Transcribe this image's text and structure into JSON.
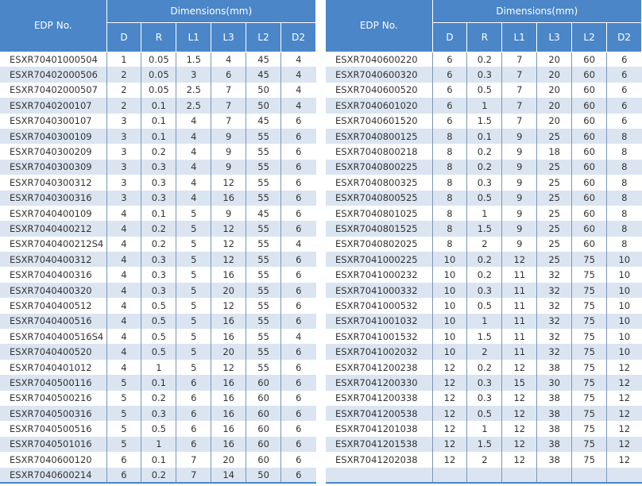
{
  "header": {
    "edp": "EDP No.",
    "group": "Dimensions(mm)",
    "cols": [
      "D",
      "R",
      "L1",
      "L3",
      "L2",
      "D2"
    ]
  },
  "colors": {
    "header": "#4a86c8",
    "band": "#dbe5f1"
  },
  "tables": [
    [
      [
        "ESXR70401000504",
        "1",
        "0.05",
        "1.5",
        "4",
        "45",
        "4"
      ],
      [
        "ESXR70402000506",
        "2",
        "0.05",
        "3",
        "6",
        "45",
        "4"
      ],
      [
        "ESXR70402000507",
        "2",
        "0.05",
        "2.5",
        "7",
        "50",
        "4"
      ],
      [
        "ESXR7040200107",
        "2",
        "0.1",
        "2.5",
        "7",
        "50",
        "4"
      ],
      [
        "ESXR7040300107",
        "3",
        "0.1",
        "4",
        "7",
        "45",
        "6"
      ],
      [
        "ESXR7040300109",
        "3",
        "0.1",
        "4",
        "9",
        "55",
        "6"
      ],
      [
        "ESXR7040300209",
        "3",
        "0.2",
        "4",
        "9",
        "55",
        "6"
      ],
      [
        "ESXR7040300309",
        "3",
        "0.3",
        "4",
        "9",
        "55",
        "6"
      ],
      [
        "ESXR7040300312",
        "3",
        "0.3",
        "4",
        "12",
        "55",
        "6"
      ],
      [
        "ESXR7040300316",
        "3",
        "0.3",
        "4",
        "16",
        "55",
        "6"
      ],
      [
        "ESXR7040400109",
        "4",
        "0.1",
        "5",
        "9",
        "45",
        "6"
      ],
      [
        "ESXR7040400212",
        "4",
        "0.2",
        "5",
        "12",
        "55",
        "6"
      ],
      [
        "ESXR7040400212S4",
        "4",
        "0.2",
        "5",
        "12",
        "55",
        "4"
      ],
      [
        "ESXR7040400312",
        "4",
        "0.3",
        "5",
        "12",
        "55",
        "6"
      ],
      [
        "ESXR7040400316",
        "4",
        "0.3",
        "5",
        "16",
        "55",
        "6"
      ],
      [
        "ESXR7040400320",
        "4",
        "0.3",
        "5",
        "20",
        "55",
        "6"
      ],
      [
        "ESXR7040400512",
        "4",
        "0.5",
        "5",
        "12",
        "55",
        "6"
      ],
      [
        "ESXR7040400516",
        "4",
        "0.5",
        "5",
        "16",
        "55",
        "6"
      ],
      [
        "ESXR7040400516S4",
        "4",
        "0.5",
        "5",
        "16",
        "55",
        "4"
      ],
      [
        "ESXR7040400520",
        "4",
        "0.5",
        "5",
        "20",
        "55",
        "6"
      ],
      [
        "ESXR7040401012",
        "4",
        "1",
        "5",
        "12",
        "55",
        "6"
      ],
      [
        "ESXR7040500116",
        "5",
        "0.1",
        "6",
        "16",
        "60",
        "6"
      ],
      [
        "ESXR7040500216",
        "5",
        "0.2",
        "6",
        "16",
        "60",
        "6"
      ],
      [
        "ESXR7040500316",
        "5",
        "0.3",
        "6",
        "16",
        "60",
        "6"
      ],
      [
        "ESXR7040500516",
        "5",
        "0.5",
        "6",
        "16",
        "60",
        "6"
      ],
      [
        "ESXR7040501016",
        "5",
        "1",
        "6",
        "16",
        "60",
        "6"
      ],
      [
        "ESXR7040600120",
        "6",
        "0.1",
        "7",
        "20",
        "60",
        "6"
      ],
      [
        "ESXR7040600214",
        "6",
        "0.2",
        "7",
        "14",
        "50",
        "6"
      ]
    ],
    [
      [
        "ESXR7040600220",
        "6",
        "0.2",
        "7",
        "20",
        "60",
        "6"
      ],
      [
        "ESXR7040600320",
        "6",
        "0.3",
        "7",
        "20",
        "60",
        "6"
      ],
      [
        "ESXR7040600520",
        "6",
        "0.5",
        "7",
        "20",
        "60",
        "6"
      ],
      [
        "ESXR7040601020",
        "6",
        "1",
        "7",
        "20",
        "60",
        "6"
      ],
      [
        "ESXR7040601520",
        "6",
        "1.5",
        "7",
        "20",
        "60",
        "6"
      ],
      [
        "ESXR7040800125",
        "8",
        "0.1",
        "9",
        "25",
        "60",
        "8"
      ],
      [
        "ESXR7040800218",
        "8",
        "0.2",
        "9",
        "18",
        "60",
        "8"
      ],
      [
        "ESXR7040800225",
        "8",
        "0.2",
        "9",
        "25",
        "60",
        "8"
      ],
      [
        "ESXR7040800325",
        "8",
        "0.3",
        "9",
        "25",
        "60",
        "8"
      ],
      [
        "ESXR7040800525",
        "8",
        "0.5",
        "9",
        "25",
        "60",
        "8"
      ],
      [
        "ESXR7040801025",
        "8",
        "1",
        "9",
        "25",
        "60",
        "8"
      ],
      [
        "ESXR7040801525",
        "8",
        "1.5",
        "9",
        "25",
        "60",
        "8"
      ],
      [
        "ESXR7040802025",
        "8",
        "2",
        "9",
        "25",
        "60",
        "8"
      ],
      [
        "ESXR7041000225",
        "10",
        "0.2",
        "12",
        "25",
        "75",
        "10"
      ],
      [
        "ESXR7041000232",
        "10",
        "0.2",
        "11",
        "32",
        "75",
        "10"
      ],
      [
        "ESXR7041000332",
        "10",
        "0.3",
        "11",
        "32",
        "75",
        "10"
      ],
      [
        "ESXR7041000532",
        "10",
        "0.5",
        "11",
        "32",
        "75",
        "10"
      ],
      [
        "ESXR7041001032",
        "10",
        "1",
        "11",
        "32",
        "75",
        "10"
      ],
      [
        "ESXR7041001532",
        "10",
        "1.5",
        "11",
        "32",
        "75",
        "10"
      ],
      [
        "ESXR7041002032",
        "10",
        "2",
        "11",
        "32",
        "75",
        "10"
      ],
      [
        "ESXR7041200238",
        "12",
        "0.2",
        "12",
        "38",
        "75",
        "12"
      ],
      [
        "ESXR7041200330",
        "12",
        "0.3",
        "15",
        "30",
        "75",
        "12"
      ],
      [
        "ESXR7041200338",
        "12",
        "0.3",
        "12",
        "38",
        "75",
        "12"
      ],
      [
        "ESXR7041200538",
        "12",
        "0.5",
        "12",
        "38",
        "75",
        "12"
      ],
      [
        "ESXR7041201038",
        "12",
        "1",
        "12",
        "38",
        "75",
        "12"
      ],
      [
        "ESXR7041201538",
        "12",
        "1.5",
        "12",
        "38",
        "75",
        "12"
      ],
      [
        "ESXR7041202038",
        "12",
        "2",
        "12",
        "38",
        "75",
        "12"
      ],
      [
        "",
        "",
        "",
        "",
        "",
        "",
        ""
      ]
    ]
  ]
}
